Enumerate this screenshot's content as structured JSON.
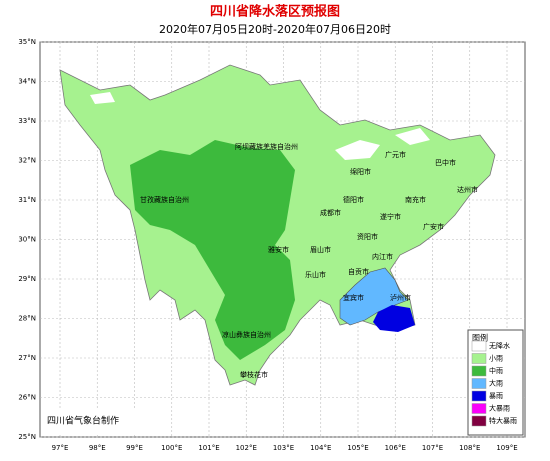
{
  "header": {
    "title": "四川省降水落区预报图",
    "subtitle": "2020年07月05日20时-2020年07月06日20时"
  },
  "lat_labels": [
    "35°N",
    "34°N",
    "33°N",
    "32°N",
    "31°N",
    "30°N",
    "29°N",
    "28°N",
    "27°N",
    "26°N",
    "25°N"
  ],
  "lon_labels": [
    "97°E",
    "98°E",
    "99°E",
    "100°E",
    "101°E",
    "102°E",
    "103°E",
    "104°E",
    "105°E",
    "106°E",
    "107°E",
    "108°E",
    "109°E"
  ],
  "places": [
    "阿坝藏族羌族自治州",
    "甘孜藏族自治州",
    "凉山彝族自治州",
    "攀枝花市",
    "广元市",
    "巴中市",
    "绵阳市",
    "达州市",
    "德阳市",
    "南充市",
    "成都市",
    "遂宁市",
    "广安市",
    "资阳市",
    "雅安市",
    "眉山市",
    "内江市",
    "乐山市",
    "自贡市",
    "宜宾市",
    "泸州市"
  ],
  "legend": {
    "title": "图例",
    "items": [
      {
        "label": "无降水",
        "color": "#ffffff"
      },
      {
        "label": "小雨",
        "color": "#a6f28f"
      },
      {
        "label": "中雨",
        "color": "#3dba3d"
      },
      {
        "label": "大雨",
        "color": "#61b8ff"
      },
      {
        "label": "暴雨",
        "color": "#0000e1"
      },
      {
        "label": "大暴雨",
        "color": "#fa00fa"
      },
      {
        "label": "特大暴雨",
        "color": "#800040"
      }
    ]
  },
  "footer": "四川省气象台制作"
}
